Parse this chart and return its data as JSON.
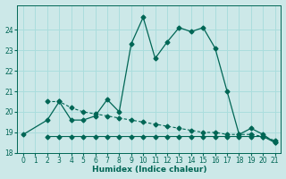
{
  "xlabel": "Humidex (Indice chaleur)",
  "bg_color": "#cce8e8",
  "grid_color": "#aadddd",
  "line_color": "#006655",
  "xlim": [
    -0.5,
    21.5
  ],
  "ylim": [
    18,
    25.2
  ],
  "xticks": [
    0,
    1,
    2,
    3,
    4,
    5,
    6,
    7,
    8,
    9,
    10,
    11,
    12,
    13,
    14,
    15,
    16,
    17,
    18,
    19,
    20,
    21
  ],
  "yticks": [
    18,
    19,
    20,
    21,
    22,
    23,
    24
  ],
  "series1_x": [
    0,
    2,
    3,
    4,
    5,
    6,
    7,
    8,
    9,
    10,
    11,
    12,
    13,
    14,
    15,
    16,
    17,
    18,
    19,
    20,
    21
  ],
  "series1_y": [
    18.9,
    19.6,
    20.5,
    19.6,
    19.6,
    19.8,
    20.6,
    20.0,
    23.3,
    24.6,
    22.6,
    23.4,
    24.1,
    23.9,
    24.1,
    23.1,
    21.0,
    18.9,
    19.2,
    18.9,
    18.5
  ],
  "series2_x": [
    2,
    3,
    4,
    5,
    6,
    7,
    8,
    9,
    10,
    11,
    12,
    13,
    14,
    15,
    16,
    17,
    18,
    19,
    20,
    21
  ],
  "series2_y": [
    20.5,
    20.5,
    20.2,
    20.0,
    19.9,
    19.8,
    19.7,
    19.6,
    19.5,
    19.4,
    19.3,
    19.2,
    19.1,
    19.0,
    19.0,
    18.9,
    18.9,
    18.9,
    18.8,
    18.6
  ],
  "series3_x": [
    2,
    3,
    4,
    5,
    6,
    7,
    8,
    9,
    10,
    11,
    12,
    13,
    14,
    15,
    16,
    17,
    18,
    19,
    20,
    21
  ],
  "series3_y": [
    18.8,
    18.8,
    18.8,
    18.8,
    18.8,
    18.8,
    18.8,
    18.8,
    18.8,
    18.8,
    18.8,
    18.8,
    18.8,
    18.8,
    18.8,
    18.8,
    18.8,
    18.8,
    18.8,
    18.5
  ]
}
